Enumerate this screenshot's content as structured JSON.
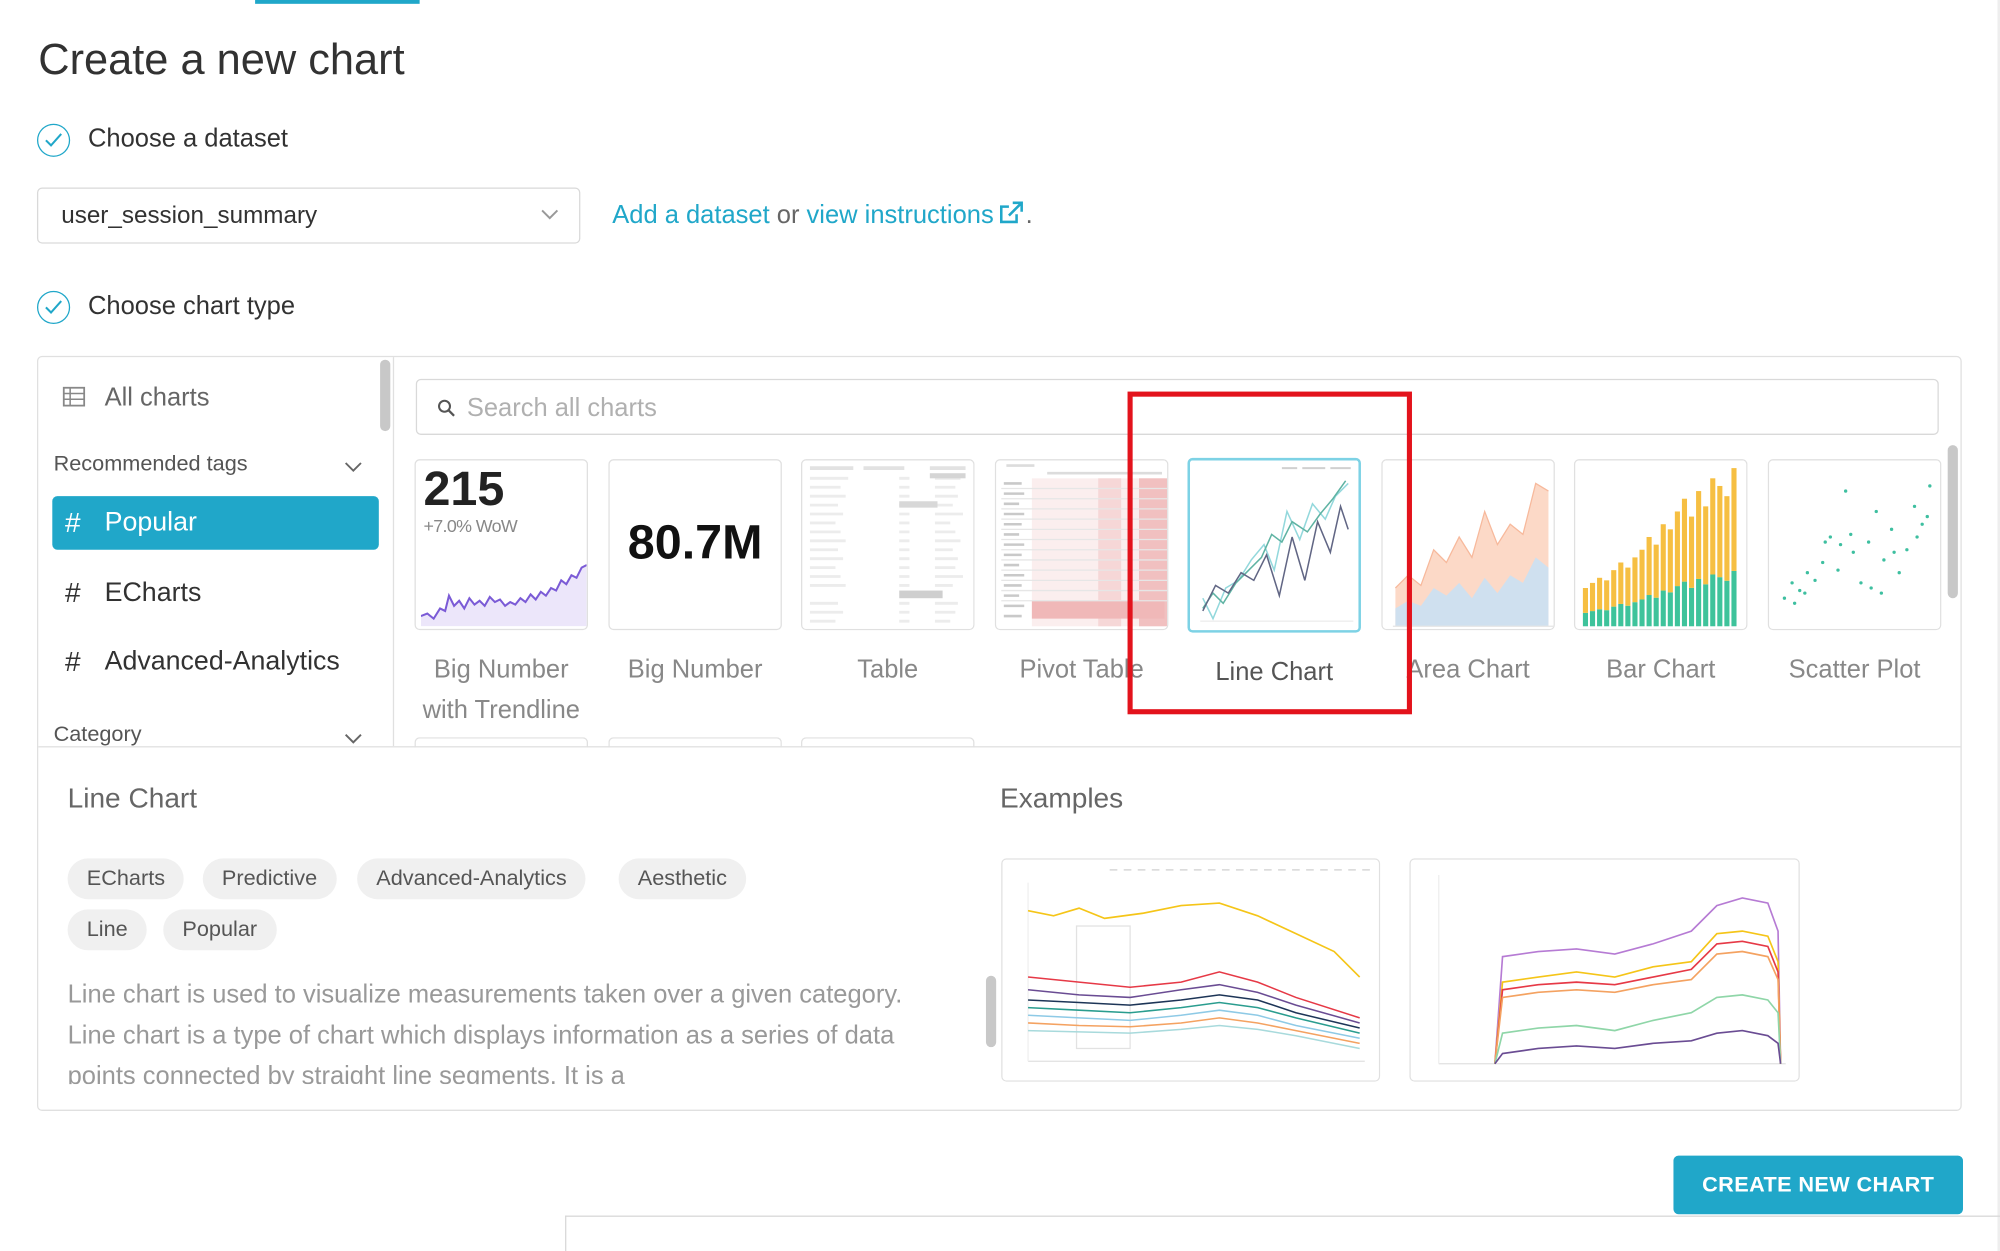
{
  "page": {
    "title": "Create a new chart"
  },
  "steps": {
    "dataset": {
      "label": "Choose a dataset"
    },
    "chart_type": {
      "label": "Choose chart type"
    }
  },
  "dataset": {
    "selected": "user_session_summary",
    "links": {
      "add": "Add a dataset",
      "or": " or ",
      "instructions": "view instructions",
      "period": "."
    }
  },
  "sidebar": {
    "all_charts": "All charts",
    "recommended_tags": "Recommended tags",
    "tags": [
      {
        "label": "Popular",
        "active": true
      },
      {
        "label": "ECharts",
        "active": false
      },
      {
        "label": "Advanced-Analytics",
        "active": false
      }
    ],
    "category": "Category"
  },
  "search": {
    "placeholder": "Search all charts"
  },
  "gallery": [
    {
      "name": "Big Number with Trendline",
      "line1": "Big Number",
      "line2": "with Trendline",
      "thumb_value": "215",
      "thumb_sub": "+7.0% WoW"
    },
    {
      "name": "Big Number",
      "line1": "Big Number",
      "thumb_value": "80.7M"
    },
    {
      "name": "Table",
      "line1": "Table"
    },
    {
      "name": "Pivot Table",
      "line1": "Pivot Table"
    },
    {
      "name": "Line Chart",
      "line1": "Line Chart",
      "selected": true
    },
    {
      "name": "Area Chart",
      "line1": "Area Chart"
    },
    {
      "name": "Bar Chart",
      "line1": "Bar Chart"
    },
    {
      "name": "Scatter Plot",
      "line1": "Scatter Plot"
    }
  ],
  "detail": {
    "title": "Line Chart",
    "tags": [
      "ECharts",
      "Predictive",
      "Advanced-Analytics",
      "Aesthetic",
      "Line",
      "Popular"
    ],
    "description": "Line chart is used to visualize measurements taken over a given category. Line chart is a type of chart which displays information as a series of data points connected by straight line segments. It is a",
    "examples_title": "Examples"
  },
  "actions": {
    "create": "CREATE NEW CHART"
  },
  "colors": {
    "accent": "#20a7c9",
    "highlight": "#e3131c"
  }
}
